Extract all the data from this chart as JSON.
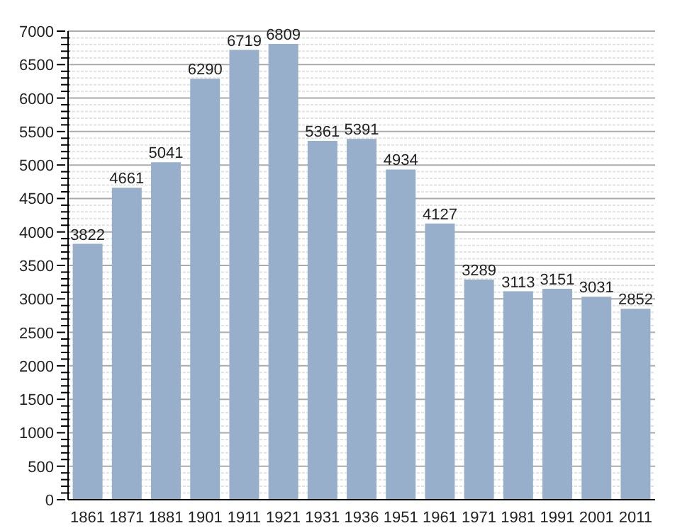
{
  "chart_data": {
    "type": "bar",
    "categories": [
      "1861",
      "1871",
      "1881",
      "1901",
      "1911",
      "1921",
      "1931",
      "1936",
      "1951",
      "1961",
      "1971",
      "1981",
      "1991",
      "2001",
      "2011"
    ],
    "values": [
      3822,
      4661,
      5041,
      6290,
      6719,
      6809,
      5361,
      5391,
      4934,
      4127,
      3289,
      3113,
      3151,
      3031,
      2852
    ],
    "color": "#97afca",
    "ylim": [
      0,
      7000
    ],
    "yticks": [
      0,
      {
        "value": 100,
        "label": null
      },
      {
        "value": 200,
        "label": null
      },
      {
        "value": 300,
        "label": null
      },
      {
        "value": 400,
        "label": null
      },
      500,
      {
        "value": 600,
        "label": null
      },
      {
        "value": 700,
        "label": null
      },
      {
        "value": 800,
        "label": null
      },
      {
        "value": 900,
        "label": null
      },
      1000,
      {
        "value": 1100,
        "label": null
      },
      {
        "value": 1200,
        "label": null
      },
      {
        "value": 1300,
        "label": null
      },
      {
        "value": 1400,
        "label": null
      },
      1500,
      {
        "value": 1600,
        "label": null
      },
      {
        "value": 1700,
        "label": null
      },
      {
        "value": 1800,
        "label": null
      },
      {
        "value": 1900,
        "label": null
      },
      2000,
      {
        "value": 2100,
        "label": null
      },
      {
        "value": 2200,
        "label": null
      },
      {
        "value": 2300,
        "label": null
      },
      {
        "value": 2400,
        "label": null
      },
      2500,
      {
        "value": 2600,
        "label": null
      },
      {
        "value": 2700,
        "label": null
      },
      {
        "value": 2800,
        "label": null
      },
      {
        "value": 2900,
        "label": null
      },
      3000,
      {
        "value": 3100,
        "label": null
      },
      {
        "value": 3200,
        "label": null
      },
      {
        "value": 3300,
        "label": null
      },
      {
        "value": 3400,
        "label": null
      },
      3500,
      {
        "value": 3600,
        "label": null
      },
      {
        "value": 3700,
        "label": null
      },
      {
        "value": 3800,
        "label": null
      },
      {
        "value": 3900,
        "label": null
      },
      4000,
      {
        "value": 4100,
        "label": null
      },
      {
        "value": 4200,
        "label": null
      },
      {
        "value": 4300,
        "label": null
      },
      {
        "value": 4400,
        "label": null
      },
      4500,
      {
        "value": 4600,
        "label": null
      },
      {
        "value": 4700,
        "label": null
      },
      {
        "value": 4800,
        "label": null
      },
      {
        "value": 4900,
        "label": null
      },
      5000,
      {
        "value": 5100,
        "label": null
      },
      {
        "value": 5200,
        "label": null
      },
      {
        "value": 5300,
        "label": null
      },
      {
        "value": 5400,
        "label": null
      },
      5500,
      {
        "value": 5600,
        "label": null
      },
      {
        "value": 5700,
        "label": null
      },
      {
        "value": 5800,
        "label": null
      },
      {
        "value": 5900,
        "label": null
      },
      6000,
      {
        "value": 6100,
        "label": null
      },
      {
        "value": 6200,
        "label": null
      },
      {
        "value": 6300,
        "label": null
      },
      {
        "value": 6400,
        "label": null
      },
      6500,
      {
        "value": 6600,
        "label": null
      },
      {
        "value": 6700,
        "label": null
      },
      {
        "value": 6800,
        "label": null
      },
      {
        "value": 6900,
        "label": null
      },
      7000
    ],
    "grid": "y",
    "data_labels": true
  }
}
